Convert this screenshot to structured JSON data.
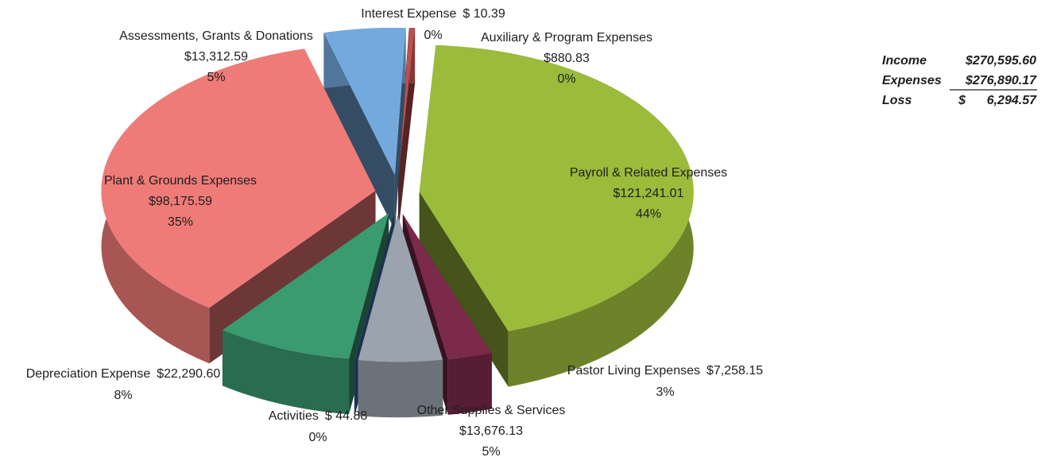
{
  "chart_data": {
    "type": "pie",
    "categories": [
      "Auxiliary & Program Expenses",
      "Payroll & Related Expenses",
      "Pastor Living Expenses",
      "Other Supplies & Services",
      "Activities",
      "Depreciation Expense",
      "Plant & Grounds Expenses",
      "Assessments, Grants & Donations",
      "Interest Expense"
    ],
    "values": [
      880.83,
      121241.01,
      7258.15,
      13676.13,
      44.88,
      22290.6,
      98175.59,
      13312.59,
      10.39
    ],
    "value_labels": [
      "$880.83",
      "$121,241.01",
      "$7,258.15",
      "$13,676.13",
      "$ 44.88",
      "$22,290.60",
      "$98,175.59",
      "$13,312.59",
      "$ 10.39"
    ],
    "percent_labels": [
      "0%",
      "44%",
      "3%",
      "5%",
      "0%",
      "8%",
      "35%",
      "5%",
      "0%"
    ],
    "colors": [
      "#c0504d",
      "#9bbb3b",
      "#7b2a4a",
      "#9aa3ae",
      "#3f6fa8",
      "#3a9a70",
      "#ef7b78",
      "#74a9de",
      "#2f5a8a"
    ]
  },
  "summary": {
    "rows": [
      {
        "label": "Income",
        "value": "$270,595.60"
      },
      {
        "label": "Expenses",
        "value": "$276,890.17"
      },
      {
        "label": "Loss",
        "value": "$      6,294.57"
      }
    ]
  }
}
